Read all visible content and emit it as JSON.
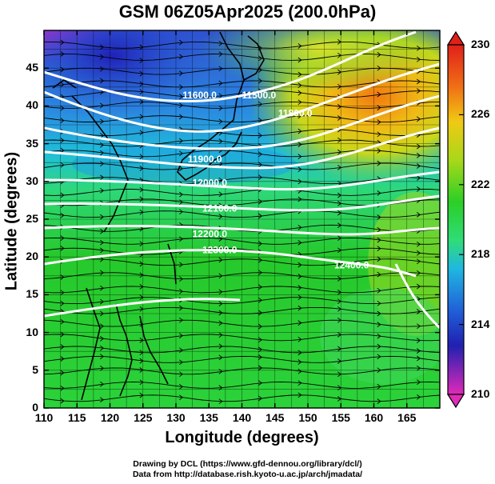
{
  "title": "GSM 06Z05Apr2025 (200.0hPa)",
  "xlabel": "Longitude (degrees)",
  "ylabel": "Latitude  (degrees)",
  "x_ticks": [
    "110",
    "115",
    "120",
    "125",
    "130",
    "135",
    "140",
    "145",
    "150",
    "155",
    "160",
    "165"
  ],
  "y_ticks": [
    "0",
    "5",
    "10",
    "15",
    "20",
    "25",
    "30",
    "35",
    "40",
    "45"
  ],
  "colorbar": {
    "labels": [
      "230",
      "226",
      "222",
      "218",
      "214",
      "210"
    ],
    "colors": [
      "#d81a7c",
      "#2333b8",
      "#1fa0e0",
      "#2fd86a",
      "#22c31e",
      "#92d31a",
      "#e8d514",
      "#f08a17",
      "#e02a0f"
    ]
  },
  "contour_labels": [
    "11500.0",
    "11600.0",
    "11800.0",
    "11900.0",
    "12000.0",
    "12100.0",
    "12200.0",
    "12300.0",
    "12400.0"
  ],
  "credits": [
    "Drawing by DCL (https://www.gfd-dennou.org/library/dcl/)",
    "Data from http://database.rish.kyoto-u.ac.jp/arch/jmadata/"
  ],
  "chart_data": {
    "type": "heatmap",
    "title": "GSM 06Z05Apr2025 (200.0hPa)",
    "xlabel": "Longitude (degrees)",
    "ylabel": "Latitude  (degrees)",
    "xlim": [
      110,
      170
    ],
    "ylim": [
      0,
      50
    ],
    "colorbar_range": [
      210,
      230
    ],
    "colorbar_ticks": [
      210,
      214,
      218,
      222,
      226,
      230
    ],
    "contours": [
      {
        "label": "11500.0",
        "lon": 140.0,
        "lat": 41.0
      },
      {
        "label": "11600.0",
        "lon": 131.0,
        "lat": 41.0
      },
      {
        "label": "11800.0",
        "lon": 145.5,
        "lat": 38.6
      },
      {
        "label": "11900.0",
        "lon": 131.8,
        "lat": 32.5
      },
      {
        "label": "12000.0",
        "lon": 132.5,
        "lat": 29.4
      },
      {
        "label": "12100.0",
        "lon": 134.0,
        "lat": 26.0
      },
      {
        "label": "12200.0",
        "lon": 132.5,
        "lat": 22.6
      },
      {
        "label": "12300.0",
        "lon": 134.0,
        "lat": 20.5
      },
      {
        "label": "12400.0",
        "lon": 154.0,
        "lat": 18.5
      }
    ]
  }
}
